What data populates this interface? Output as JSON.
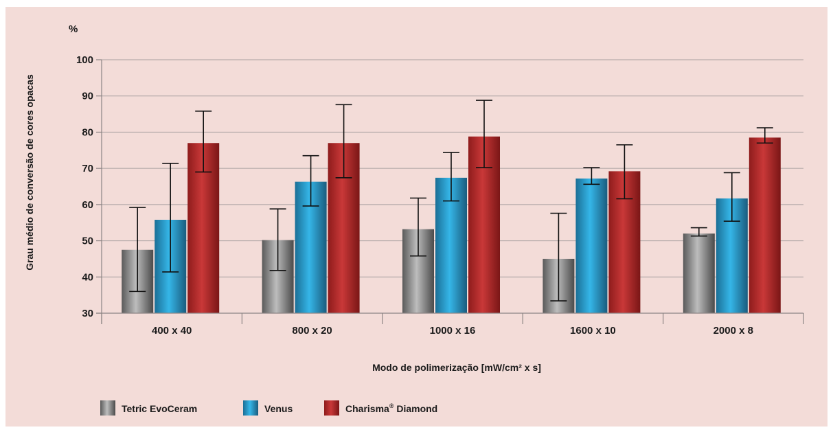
{
  "colors": {
    "background": "#f3dcd8",
    "Tetric EvoCeram": [
      "#5a5a5a",
      "#bdbdbd",
      "#4a4a4a"
    ],
    "Venus": [
      "#1b6f96",
      "#35b6e8",
      "#1a5c7e"
    ],
    "Charisma Diamond": [
      "#8e1c1c",
      "#c93838",
      "#7a1616"
    ]
  },
  "chart_data": {
    "type": "bar",
    "unit": "%",
    "ylabel": "Grau médio de conversão de cores opacas",
    "xlabel": "Modo de polimerização [mW/cm² x s]",
    "ylim": [
      30,
      100
    ],
    "yticks": [
      30,
      40,
      50,
      60,
      70,
      80,
      90,
      100
    ],
    "grid": true,
    "legend_position": "bottom-left",
    "categories": [
      "400 x 40",
      "800 x 20",
      "1000 x 16",
      "1600 x 10",
      "2000 x 8"
    ],
    "series": [
      {
        "name": "Tetric EvoCeram",
        "values": [
          47.5,
          50.2,
          53.2,
          45.0,
          52.0
        ],
        "err_low": [
          36.0,
          41.8,
          45.8,
          33.4,
          51.3
        ],
        "err_high": [
          59.2,
          58.8,
          61.8,
          57.6,
          53.6
        ]
      },
      {
        "name": "Venus",
        "values": [
          55.8,
          66.3,
          67.4,
          67.2,
          61.7
        ],
        "err_low": [
          41.4,
          59.6,
          61.0,
          65.6,
          55.4
        ],
        "err_high": [
          71.4,
          73.5,
          74.4,
          70.2,
          68.8
        ]
      },
      {
        "name": "Charisma Diamond",
        "legend_label": "Charisma",
        "legend_superscript": "®",
        "legend_suffix": " Diamond",
        "values": [
          77.0,
          77.0,
          78.8,
          69.2,
          78.5
        ],
        "err_low": [
          69.0,
          67.4,
          70.2,
          61.6,
          77.0
        ],
        "err_high": [
          85.8,
          87.6,
          88.8,
          76.5,
          81.2
        ]
      }
    ]
  }
}
